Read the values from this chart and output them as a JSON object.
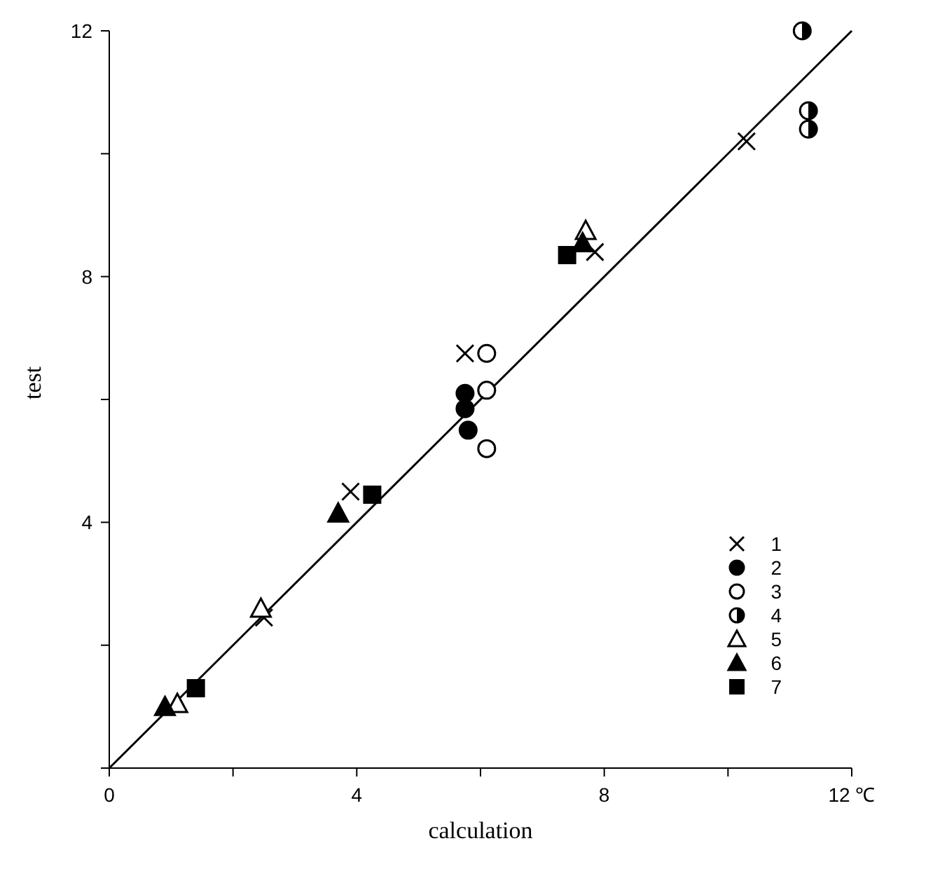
{
  "chart_data": {
    "type": "scatter",
    "xlabel": "calculation",
    "ylabel": "test",
    "xlim": [
      0,
      12
    ],
    "ylim": [
      0,
      12
    ],
    "xticks": [
      0,
      {
        "value": 2,
        "label": null
      },
      4,
      {
        "value": 6,
        "label": null
      },
      8,
      {
        "value": 10,
        "label": null
      },
      {
        "value": 12,
        "label": "12 ℃"
      }
    ],
    "yticks": [
      {
        "value": 0,
        "label": null
      },
      {
        "value": 2,
        "label": null
      },
      4,
      {
        "value": 6,
        "label": null
      },
      8,
      {
        "value": 10,
        "label": null
      },
      12
    ],
    "grid": false,
    "legend": "bottom right",
    "series": [
      {
        "name": "1",
        "color": "#000000",
        "marker": "cross",
        "x": [
          2.5,
          3.9,
          5.75,
          7.85,
          10.3
        ],
        "values": [
          2.45,
          4.5,
          6.75,
          8.4,
          10.2
        ]
      },
      {
        "name": "2",
        "color": "#000000",
        "marker": "circle",
        "x": [
          5.75,
          5.75,
          5.8
        ],
        "values": [
          6.1,
          5.85,
          5.5
        ]
      },
      {
        "name": "3",
        "color": "#000000",
        "marker": "circle-open",
        "x": [
          6.1,
          6.1,
          6.1
        ],
        "values": [
          6.75,
          6.15,
          5.2
        ]
      },
      {
        "name": "4",
        "color": "#000000",
        "marker": "circle-half",
        "x": [
          11.2,
          11.3,
          11.3
        ],
        "values": [
          12,
          10.7,
          10.4
        ]
      },
      {
        "name": "5",
        "color": "#000000",
        "marker": "triangle-open",
        "x": [
          1.1,
          2.45,
          7.7
        ],
        "values": [
          1.05,
          2.6,
          8.75
        ]
      },
      {
        "name": "6",
        "color": "#000000",
        "marker": "triangle",
        "x": [
          0.9,
          3.7,
          7.65
        ],
        "values": [
          1.0,
          4.15,
          8.55
        ]
      },
      {
        "name": "7",
        "color": "#000000",
        "marker": "square",
        "x": [
          1.4,
          4.25,
          7.4
        ],
        "values": [
          1.3,
          4.45,
          8.35
        ]
      },
      {
        "type": "line",
        "color": "#000000",
        "line_style": "solid",
        "marker": "none",
        "x": [
          0,
          12
        ],
        "values": [
          0,
          12
        ]
      }
    ]
  }
}
